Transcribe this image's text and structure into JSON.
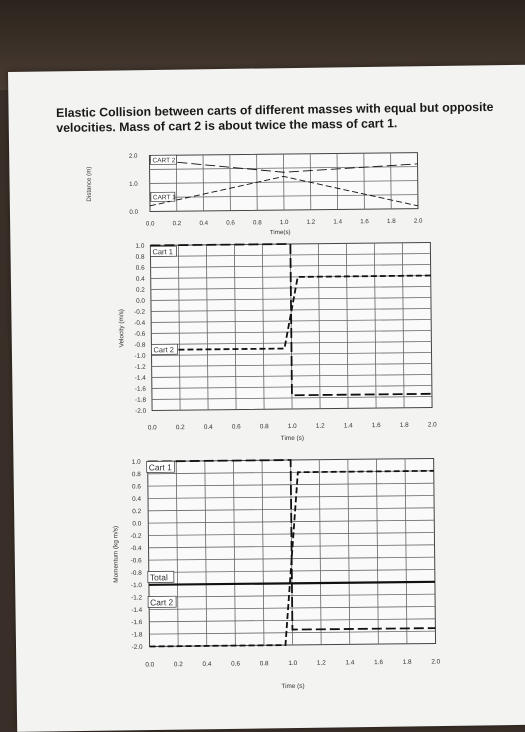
{
  "title": "Elastic Collision between carts of different masses with equal but opposite velocities. Mass of cart 2 is about twice the mass of cart 1.",
  "chart_data": [
    {
      "type": "line",
      "name": "distance",
      "ylabel": "Distance (m)",
      "xlabel": "Time(s)",
      "xlim": [
        0,
        2.0
      ],
      "ylim": [
        0,
        2.0
      ],
      "xticks": [
        "0.0",
        "0.2",
        "0.4",
        "0.6",
        "0.8",
        "1.0",
        "1.2",
        "1.4",
        "1.6",
        "1.8",
        "2.0"
      ],
      "yticks": [
        "0.0",
        "1.0",
        "2.0"
      ],
      "series": [
        {
          "name": "CART 2",
          "x": [
            0.0,
            1.0,
            2.0
          ],
          "y": [
            1.85,
            1.35,
            1.6
          ]
        },
        {
          "name": "CART 1",
          "x": [
            0.0,
            1.0,
            2.0
          ],
          "y": [
            0.2,
            1.2,
            0.1
          ]
        }
      ]
    },
    {
      "type": "line",
      "name": "velocity",
      "ylabel": "Velocity (m/s)",
      "xlabel": "Time (s)",
      "xlim": [
        0,
        2.0
      ],
      "ylim": [
        -2.0,
        1.0
      ],
      "xticks": [
        "0.0",
        "0.2",
        "0.4",
        "0.6",
        "0.8",
        "1.0",
        "1.2",
        "1.4",
        "1.6",
        "1.8",
        "2.0"
      ],
      "yticks": [
        "1.0",
        "0.8",
        "0.6",
        "0.4",
        "0.2",
        "0.0",
        "-0.2",
        "-0.4",
        "-0.6",
        "-0.8",
        "-1.0",
        "-1.2",
        "-1.4",
        "-1.6",
        "-1.8",
        "-2.0"
      ],
      "series": [
        {
          "name": "Cart 1",
          "x": [
            0.0,
            1.0,
            1.0,
            2.0
          ],
          "y": [
            1.0,
            1.0,
            -1.75,
            -1.75
          ]
        },
        {
          "name": "Cart 2",
          "x": [
            0.0,
            0.95,
            1.05,
            2.0
          ],
          "y": [
            -0.9,
            -0.9,
            0.4,
            0.4
          ]
        }
      ]
    },
    {
      "type": "line",
      "name": "momentum",
      "ylabel": "Momentum (kg m/s)",
      "xlabel": "Time (s)",
      "xlim": [
        0,
        2.0
      ],
      "ylim": [
        -2.0,
        1.0
      ],
      "xticks": [
        "0.0",
        "0.2",
        "0.4",
        "0.6",
        "0.8",
        "1.0",
        "1.2",
        "1.4",
        "1.6",
        "1.8",
        "2.0"
      ],
      "yticks": [
        "1.0",
        "0.8",
        "0.6",
        "0.4",
        "0.2",
        "0.0",
        "-0.2",
        "-0.4",
        "-0.6",
        "-0.8",
        "-1.0",
        "-1.2",
        "-1.4",
        "-1.6",
        "-1.8",
        "-2.0"
      ],
      "series": [
        {
          "name": "Cart 1",
          "x": [
            0.0,
            1.0,
            1.0,
            2.0
          ],
          "y": [
            1.0,
            1.0,
            -1.75,
            -1.75
          ]
        },
        {
          "name": "Total",
          "x": [
            0.0,
            2.0
          ],
          "y": [
            -1.0,
            -1.0
          ]
        },
        {
          "name": "Cart 2",
          "x": [
            0.0,
            0.95,
            1.05,
            2.0
          ],
          "y": [
            -2.0,
            -2.0,
            0.8,
            0.8
          ]
        }
      ]
    }
  ]
}
